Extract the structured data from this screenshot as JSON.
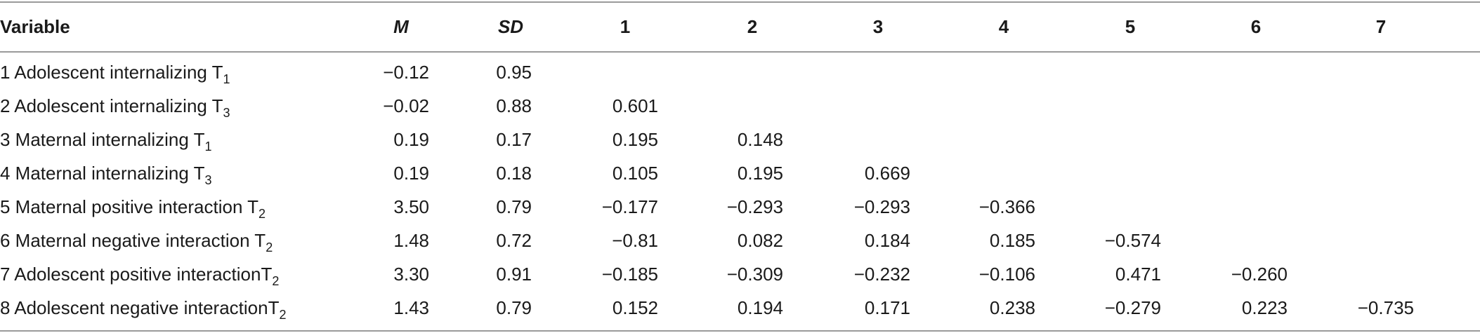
{
  "table": {
    "header": [
      "Variable",
      "M",
      "SD",
      "1",
      "2",
      "3",
      "4",
      "5",
      "6",
      "7"
    ],
    "rows": [
      {
        "label": "1 Adolescent internalizing T",
        "sub": "1",
        "M": "−0.12",
        "SD": "0.95",
        "correlations": []
      },
      {
        "label": "2 Adolescent internalizing T",
        "sub": "3",
        "M": "−0.02",
        "SD": "0.88",
        "correlations": [
          "0.601"
        ]
      },
      {
        "label": "3 Maternal internalizing T",
        "sub": "1",
        "M": "0.19",
        "SD": "0.17",
        "correlations": [
          "0.195",
          "0.148"
        ]
      },
      {
        "label": "4 Maternal internalizing T",
        "sub": "3",
        "M": "0.19",
        "SD": "0.18",
        "correlations": [
          "0.105",
          "0.195",
          "0.669"
        ]
      },
      {
        "label": "5 Maternal positive interaction T",
        "sub": "2",
        "M": "3.50",
        "SD": "0.79",
        "correlations": [
          "−0.177",
          "−0.293",
          "−0.293",
          "−0.366"
        ]
      },
      {
        "label": "6 Maternal negative interaction T",
        "sub": "2",
        "M": "1.48",
        "SD": "0.72",
        "correlations": [
          "−0.81",
          "0.082",
          "0.184",
          "0.185",
          "−0.574"
        ]
      },
      {
        "label": "7 Adolescent positive interactionT",
        "sub": "2",
        "M": "3.30",
        "SD": "0.91",
        "correlations": [
          "−0.185",
          "−0.309",
          "−0.232",
          "−0.106",
          "0.471",
          "−0.260"
        ]
      },
      {
        "label": "8 Adolescent negative interactionT",
        "sub": "2",
        "M": "1.43",
        "SD": "0.79",
        "correlations": [
          "0.152",
          "0.194",
          "0.171",
          "0.238",
          "−0.279",
          "0.223",
          "−0.735"
        ]
      }
    ]
  }
}
